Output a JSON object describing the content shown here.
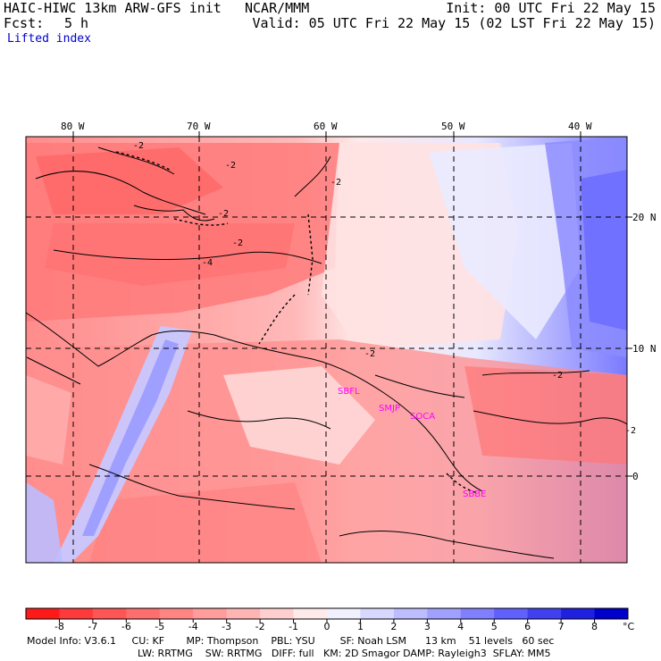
{
  "header": {
    "model_title": "HAIC-HIWC 13km ARW-GFS init",
    "org": "NCAR/MMM",
    "init": "Init: 00 UTC Fri 22 May 15",
    "fcst_label": "Fcst:",
    "fcst_value": "5 h",
    "valid": "Valid: 05 UTC Fri 22 May 15 (02 LST Fri 22 May 15)",
    "field": "Lifted index"
  },
  "map": {
    "lon_labels": [
      "80 W",
      "70 W",
      "60 W",
      "50 W",
      "40 W"
    ],
    "lat_labels": [
      "20 N",
      "10 N",
      "0"
    ],
    "stations": [
      {
        "id": "SBFL",
        "text": "SBFL"
      },
      {
        "id": "SMJP",
        "text": "SMJP"
      },
      {
        "id": "SOCA",
        "text": "SOCA"
      },
      {
        "id": "SBBE",
        "text": "SBBE"
      }
    ],
    "contour_labels": [
      "-2",
      "-2",
      "-2",
      "-2",
      "-2",
      "-4",
      "-2",
      "-2",
      "-2"
    ]
  },
  "colorbar": {
    "ticks": [
      "-8",
      "-7",
      "-6",
      "-5",
      "-4",
      "-3",
      "-2",
      "-1",
      "0",
      "1",
      "2",
      "3",
      "4",
      "5",
      "6",
      "7",
      "8"
    ],
    "unit": "°C",
    "colors": [
      "#ff1a1a",
      "#ff3a3a",
      "#ff5555",
      "#ff6e6e",
      "#ff8585",
      "#ff9c9c",
      "#ffb4b4",
      "#ffcfcf",
      "#ffeaea",
      "#f0f0ff",
      "#d8d8ff",
      "#bcbcff",
      "#a0a0ff",
      "#8080ff",
      "#6060ff",
      "#4040f0",
      "#2020e0",
      "#0000cc"
    ]
  },
  "footer": {
    "line1": "Model Info: V3.6.1     CU: KF       MP: Thompson    PBL: YSU        SF: Noah LSM      13 km    51 levels   60 sec",
    "line2": "LW: RRTMG    SW: RRTMG   DIFF: full   KM: 2D Smagor DAMP: Rayleigh3  SFLAY: MM5"
  }
}
